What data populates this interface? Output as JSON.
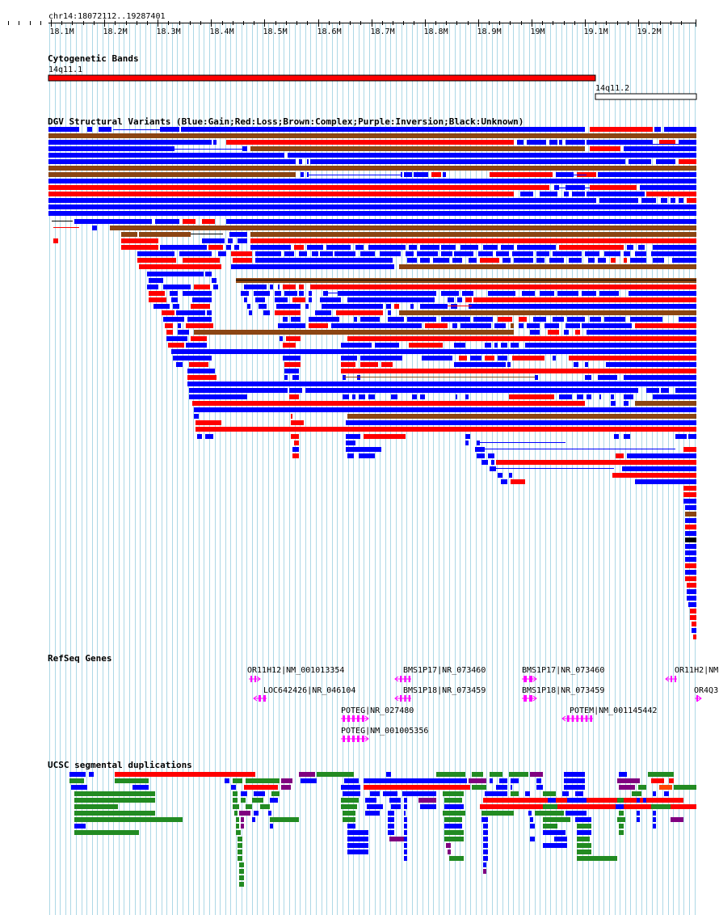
{
  "colors": {
    "grid": "#add8e6",
    "gain": "#0000ff",
    "loss": "#ff0000",
    "complex": "#8b4513",
    "inversion": "#800080",
    "unknown": "#000000",
    "gene": "#ff00ff",
    "segdup_green": "#228b22",
    "band_red": "#ff0000"
  },
  "ruler": {
    "locus": "chr14:18072112..19287401",
    "ticks": [
      "18.1M",
      "18.2M",
      "18.3M",
      "18.4M",
      "18.5M",
      "18.6M",
      "18.7M",
      "18.8M",
      "18.9M",
      "19M",
      "19.1M",
      "19.2M"
    ]
  },
  "tracks": {
    "cytobands": {
      "title": "Cytogenetic Bands",
      "bands": [
        {
          "name": "14q11.1",
          "fill": "#ff0000"
        },
        {
          "name": "14q11.2",
          "fill": "#ffffff"
        }
      ]
    },
    "dgv": {
      "title": "DGV Structural Variants (Blue:Gain;Red:Loss;Brown:Complex;Purple:Inversion;Black:Unknown)"
    },
    "refseq": {
      "title": "RefSeq Genes",
      "genes": [
        {
          "label": "OR11H12|NM_001013354",
          "strand": "+"
        },
        {
          "label": "LOC642426|NR_046104",
          "strand": "-"
        },
        {
          "label": "BMS1P17|NR_073460",
          "strand": "-"
        },
        {
          "label": "BMS1P18|NR_073459",
          "strand": "-"
        },
        {
          "label": "POTEG|NR_027480",
          "strand": "+"
        },
        {
          "label": "POTEG|NM_001005356",
          "strand": "+"
        },
        {
          "label": "BMS1P17|NR_073460",
          "strand": "+"
        },
        {
          "label": "BMS1P18|NR_073459",
          "strand": "+"
        },
        {
          "label": "POTEM|NM_001145442",
          "strand": "-"
        },
        {
          "label": "OR11H2|NM",
          "strand": "-"
        },
        {
          "label": "OR4Q3",
          "strand": "+"
        }
      ]
    },
    "segdups": {
      "title": "UCSC segmental duplications"
    }
  }
}
